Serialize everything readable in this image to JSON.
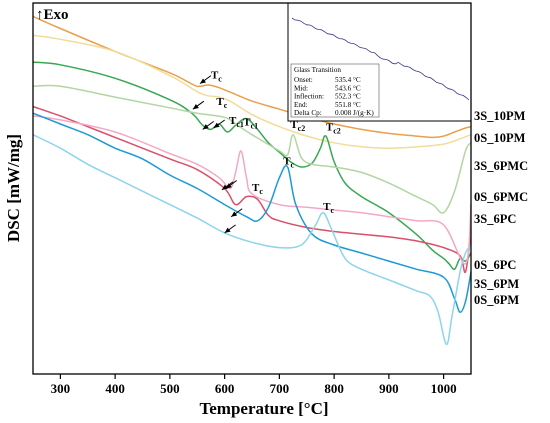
{
  "chart_data": {
    "type": "line",
    "xlabel": "Temperature [°C]",
    "ylabel": "DSC [mW/mg]",
    "exo_label": "↑Exo",
    "xlim": [
      250,
      1050
    ],
    "xticks": [
      300,
      400,
      500,
      600,
      700,
      800,
      900,
      1000
    ],
    "grid": false,
    "series": [
      {
        "name": "3S_10PM",
        "color": "#e8a04a",
        "x": [
          250,
          300,
          400,
          500,
          530,
          550,
          570,
          590,
          620,
          650,
          700,
          750,
          800,
          850,
          900,
          950,
          980,
          1000,
          1020,
          1040,
          1050
        ],
        "y": [
          1.0,
          0.955,
          0.87,
          0.79,
          0.76,
          0.74,
          0.745,
          0.735,
          0.71,
          0.685,
          0.655,
          0.625,
          0.6,
          0.58,
          0.565,
          0.555,
          0.55,
          0.555,
          0.57,
          0.585,
          0.59
        ]
      },
      {
        "name": "0S_10PM",
        "color": "#f2dc9a",
        "x": [
          250,
          300,
          400,
          500,
          550,
          570,
          590,
          610,
          650,
          700,
          750,
          800,
          850,
          900,
          950,
          1000,
          1030,
          1050
        ],
        "y": [
          0.93,
          0.915,
          0.87,
          0.78,
          0.72,
          0.705,
          0.7,
          0.685,
          0.635,
          0.59,
          0.555,
          0.53,
          0.515,
          0.51,
          0.515,
          0.525,
          0.545,
          0.56
        ]
      },
      {
        "name": "3S_6PMC",
        "color": "#36a852",
        "x": [
          250,
          300,
          400,
          500,
          540,
          560,
          575,
          590,
          605,
          620,
          640,
          660,
          680,
          700,
          720,
          740,
          760,
          775,
          785,
          800,
          820,
          850,
          900,
          950,
          980,
          1000,
          1010,
          1020,
          1030,
          1040,
          1050
        ],
        "y": [
          0.83,
          0.82,
          0.77,
          0.69,
          0.64,
          0.595,
          0.58,
          0.6,
          0.57,
          0.595,
          0.62,
          0.58,
          0.53,
          0.495,
          0.46,
          0.44,
          0.455,
          0.51,
          0.555,
          0.46,
          0.38,
          0.33,
          0.27,
          0.19,
          0.13,
          0.1,
          0.08,
          0.06,
          0.1,
          0.09,
          0.12
        ]
      },
      {
        "name": "0S_6PMC",
        "color": "#b2d6a2",
        "x": [
          250,
          300,
          400,
          500,
          550,
          600,
          620,
          650,
          700,
          715,
          725,
          740,
          760,
          800,
          850,
          900,
          950,
          980,
          1000,
          1020,
          1040,
          1050
        ],
        "y": [
          0.74,
          0.74,
          0.7,
          0.66,
          0.64,
          0.625,
          0.6,
          0.56,
          0.5,
          0.485,
          0.56,
          0.475,
          0.45,
          0.44,
          0.42,
          0.38,
          0.33,
          0.3,
          0.27,
          0.35,
          0.5,
          0.53
        ]
      },
      {
        "name": "3S_6PC",
        "color": "#d9506a",
        "x": [
          250,
          300,
          350,
          400,
          500,
          550,
          600,
          620,
          640,
          660,
          680,
          700,
          750,
          800,
          850,
          900,
          950,
          1000,
          1030,
          1040,
          1050
        ],
        "y": [
          0.665,
          0.63,
          0.59,
          0.55,
          0.47,
          0.43,
          0.36,
          0.3,
          0.33,
          0.32,
          0.26,
          0.24,
          0.215,
          0.2,
          0.19,
          0.18,
          0.165,
          0.14,
          0.11,
          0.05,
          0.2
        ]
      },
      {
        "name": "0S_6PC",
        "color": "#f3a8c6",
        "x": [
          250,
          300,
          400,
          500,
          550,
          590,
          610,
          620,
          630,
          640,
          650,
          700,
          750,
          800,
          850,
          900,
          950,
          1000,
          1040,
          1050
        ],
        "y": [
          0.63,
          0.615,
          0.57,
          0.49,
          0.45,
          0.4,
          0.36,
          0.42,
          0.5,
          0.4,
          0.34,
          0.3,
          0.29,
          0.28,
          0.27,
          0.255,
          0.24,
          0.225,
          0.08,
          0.3
        ]
      },
      {
        "name": "3S_6PM",
        "color": "#1c9ad6",
        "x": [
          250,
          300,
          350,
          400,
          450,
          500,
          550,
          600,
          640,
          660,
          680,
          700,
          715,
          730,
          760,
          800,
          850,
          900,
          950,
          1000,
          1020,
          1030,
          1040,
          1050
        ],
        "y": [
          0.64,
          0.6,
          0.56,
          0.51,
          0.47,
          0.41,
          0.36,
          0.3,
          0.255,
          0.24,
          0.29,
          0.4,
          0.44,
          0.3,
          0.19,
          0.15,
          0.12,
          0.09,
          0.06,
          0.03,
          -0.05,
          -0.1,
          -0.06,
          0.05
        ]
      },
      {
        "name": "0S_6PM",
        "color": "#8dd4ec",
        "x": [
          250,
          300,
          350,
          400,
          450,
          500,
          550,
          600,
          650,
          700,
          740,
          765,
          780,
          795,
          820,
          850,
          900,
          950,
          975,
          990,
          1005,
          1015,
          1030,
          1040,
          1050
        ],
        "y": [
          0.56,
          0.51,
          0.45,
          0.4,
          0.35,
          0.3,
          0.25,
          0.195,
          0.16,
          0.14,
          0.15,
          0.22,
          0.27,
          0.21,
          0.1,
          0.06,
          0.02,
          -0.02,
          -0.04,
          -0.1,
          -0.22,
          -0.12,
          0.05,
          0.12,
          0.15
        ]
      }
    ],
    "annotations": [
      {
        "text": "T",
        "sub": "c",
        "x": 575,
        "y": 0.77
      },
      {
        "text": "T",
        "sub": "c",
        "x": 585,
        "y": 0.67
      },
      {
        "text": "T",
        "sub": "c1",
        "x": 608,
        "y": 0.6
      },
      {
        "text": "T",
        "sub": "c1",
        "x": 634,
        "y": 0.595
      },
      {
        "text": "T",
        "sub": "c2",
        "x": 720,
        "y": 0.585
      },
      {
        "text": "T",
        "sub": "c2",
        "x": 785,
        "y": 0.575
      },
      {
        "text": "T",
        "sub": "c",
        "x": 650,
        "y": 0.35
      },
      {
        "text": "T",
        "sub": "c",
        "x": 707,
        "y": 0.45
      },
      {
        "text": "T",
        "sub": "c",
        "x": 780,
        "y": 0.28
      }
    ],
    "arrows": [
      {
        "x": 555,
        "y": 0.75
      },
      {
        "x": 542,
        "y": 0.655
      },
      {
        "x": 560,
        "y": 0.58
      },
      {
        "x": 580,
        "y": 0.585
      },
      {
        "x": 595,
        "y": 0.355
      },
      {
        "x": 602,
        "y": 0.36
      },
      {
        "x": 612,
        "y": 0.255
      },
      {
        "x": 600,
        "y": 0.195
      }
    ],
    "inset": {
      "title": "Glass Transition",
      "rows": [
        {
          "label": "Onset:",
          "value": "535.4 °C"
        },
        {
          "label": "Mid:",
          "value": "543.6 °C"
        },
        {
          "label": "Inflection:",
          "value": "552.3 °C"
        },
        {
          "label": "End:",
          "value": "551.8 °C"
        },
        {
          "label": "Delta Cp:",
          "value": "0.008 J/(g·K)"
        }
      ]
    }
  }
}
